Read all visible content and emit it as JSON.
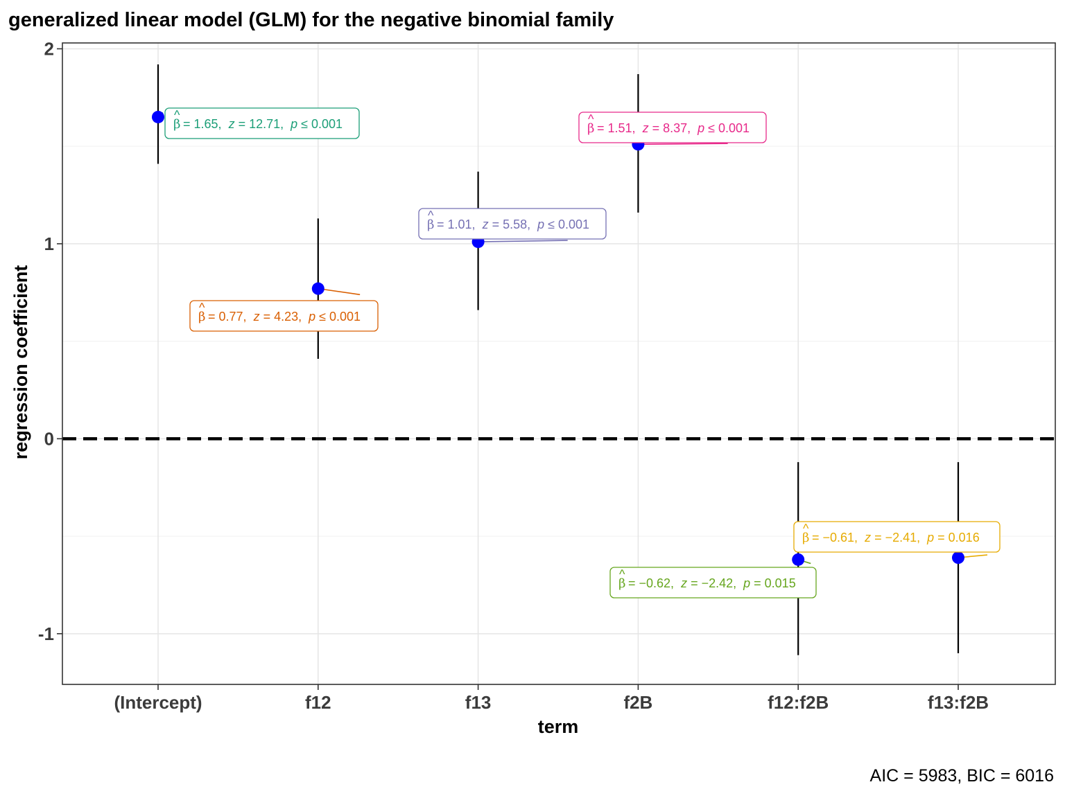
{
  "chart_data": {
    "type": "scatter",
    "title": "generalized linear model (GLM) for the negative binomial family",
    "xlabel": "term",
    "ylabel": "regression coefficient",
    "caption": "AIC = 5983, BIC = 6016",
    "categories": [
      "(Intercept)",
      "f12",
      "f13",
      "f2B",
      "f12:f2B",
      "f13:f2B"
    ],
    "yticks": [
      -1,
      0,
      1,
      2
    ],
    "ytick_labels": [
      "-1",
      "0",
      "1",
      "2"
    ],
    "ylim": [
      -1.26,
      2.03
    ],
    "grid": true,
    "reference_line": 0,
    "point_color": "#0000ff",
    "estimates": [
      {
        "term": "(Intercept)",
        "estimate": 1.65,
        "conf_low": 1.41,
        "conf_high": 1.92,
        "color": "#1b9e77",
        "parts": [
          "= 1.65,  ",
          "z",
          " = 12.71,  ",
          "p",
          " ≤ 0.001"
        ]
      },
      {
        "term": "f12",
        "estimate": 0.77,
        "conf_low": 0.41,
        "conf_high": 1.13,
        "color": "#d95f02",
        "parts": [
          "= 0.77,  ",
          "z",
          " = 4.23,  ",
          "p",
          " ≤ 0.001"
        ]
      },
      {
        "term": "f13",
        "estimate": 1.01,
        "conf_low": 0.66,
        "conf_high": 1.37,
        "color": "#7570b3",
        "parts": [
          "= 1.01,  ",
          "z",
          " = 5.58,  ",
          "p",
          " ≤ 0.001"
        ]
      },
      {
        "term": "f2B",
        "estimate": 1.51,
        "conf_low": 1.16,
        "conf_high": 1.87,
        "color": "#e7298a",
        "parts": [
          "= 1.51,  ",
          "z",
          " = 8.37,  ",
          "p",
          " ≤ 0.001"
        ]
      },
      {
        "term": "f12:f2B",
        "estimate": -0.62,
        "conf_low": -1.11,
        "conf_high": -0.12,
        "color": "#66a61e",
        "parts": [
          "= −0.62,  ",
          "z",
          " = −2.42,  ",
          "p",
          " = 0.015"
        ]
      },
      {
        "term": "f13:f2B",
        "estimate": -0.61,
        "conf_low": -1.1,
        "conf_high": -0.12,
        "color": "#e6ab02",
        "parts": [
          "= −0.61,  ",
          "z",
          " = −2.41,  ",
          "p",
          " = 0.016"
        ]
      }
    ],
    "beta_symbol": "β",
    "hat_symbol": "^"
  }
}
